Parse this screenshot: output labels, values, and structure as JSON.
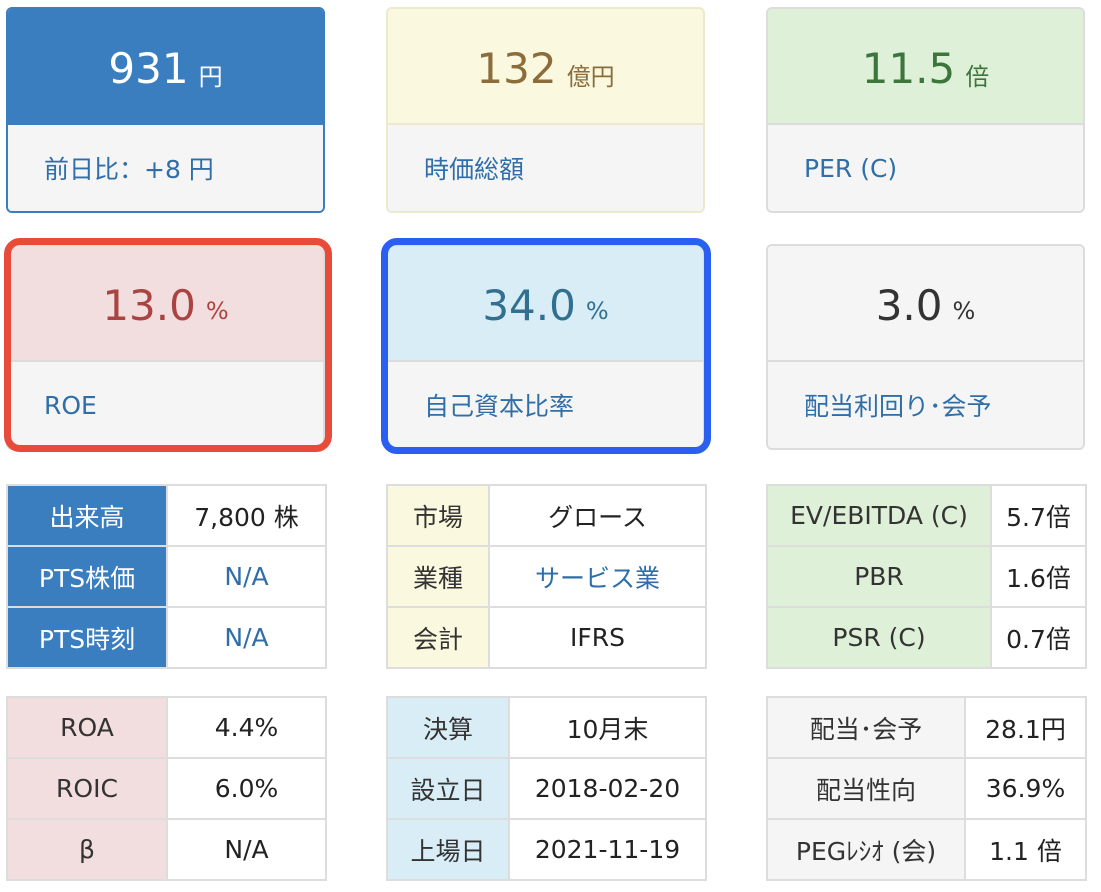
{
  "cards": {
    "price": {
      "value": "931",
      "unit": "円",
      "label": "前日比：+8 円"
    },
    "market_cap": {
      "value": "132",
      "unit": "億円",
      "label": "時価総額"
    },
    "per": {
      "value": "11.5",
      "unit": "倍",
      "label": "PER (C)"
    },
    "roe": {
      "value": "13.0",
      "unit": "%",
      "label": "ROE"
    },
    "equity_ratio": {
      "value": "34.0",
      "unit": "%",
      "label": "自己資本比率"
    },
    "dividend_yield": {
      "value": "3.0",
      "unit": "%",
      "label": "配当利回り･会予"
    }
  },
  "table_trading": [
    {
      "label": "出来高",
      "value": "7,800 株"
    },
    {
      "label": "PTS株価",
      "value": "N/A"
    },
    {
      "label": "PTS時刻",
      "value": "N/A"
    }
  ],
  "table_company": [
    {
      "label": "市場",
      "value": "グロース"
    },
    {
      "label": "業種",
      "value": "サービス業"
    },
    {
      "label": "会計",
      "value": "IFRS"
    }
  ],
  "table_valuation": [
    {
      "label": "EV/EBITDA (C)",
      "value": "5.7倍"
    },
    {
      "label": "PBR",
      "value": "1.6倍"
    },
    {
      "label": "PSR (C)",
      "value": "0.7倍"
    }
  ],
  "table_returns": [
    {
      "label": "ROA",
      "value": "4.4%"
    },
    {
      "label": "ROIC",
      "value": "6.0%"
    },
    {
      "label": "β",
      "value": "N/A"
    }
  ],
  "table_dates": [
    {
      "label": "決算",
      "value": "10月末"
    },
    {
      "label": "設立日",
      "value": "2018-02-20"
    },
    {
      "label": "上場日",
      "value": "2021-11-19"
    }
  ],
  "table_dividend": [
    {
      "label": "配当･会予",
      "value": "28.1円"
    },
    {
      "label": "配当性向",
      "value": "36.9%"
    },
    {
      "label": "PEGﾚｼｵ (会)",
      "value": "1.1 倍"
    }
  ],
  "colors": {
    "blue": "#3a7ebf",
    "highlight_red": "#e84b3a",
    "highlight_blue": "#2a5ff0",
    "link": "#2f6ea8"
  }
}
